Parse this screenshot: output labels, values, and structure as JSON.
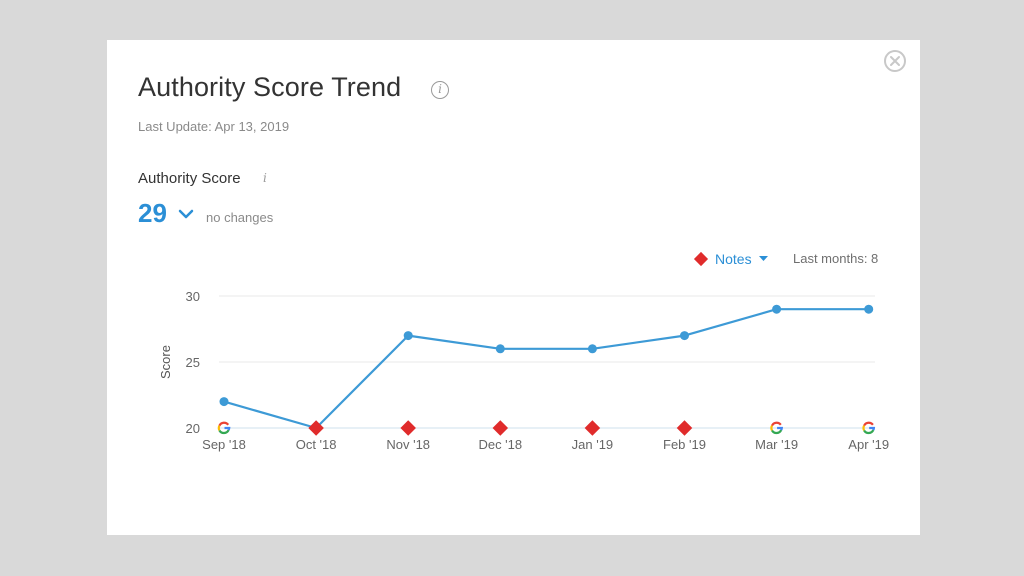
{
  "modal": {
    "title": "Authority Score Trend",
    "info_glyph": "i",
    "last_update": "Last Update: Apr 13, 2019",
    "close_icon": "close-circle-icon"
  },
  "score": {
    "label": "Authority Score",
    "info_glyph": "i",
    "value": "29",
    "change_text": "no changes"
  },
  "controls": {
    "notes_label": "Notes",
    "last_months": "Last months: 8"
  },
  "colors": {
    "accent": "#2b8fd6",
    "line": "#3d9ad6",
    "note_marker": "#e02b2b",
    "grid": "#e8e8e8"
  },
  "chart_data": {
    "type": "line",
    "title": "",
    "xlabel": "",
    "ylabel": "Score",
    "ylim": [
      20,
      30
    ],
    "yticks": [
      20,
      25,
      30
    ],
    "categories": [
      "Sep '18",
      "Oct '18",
      "Nov '18",
      "Dec '18",
      "Jan '19",
      "Feb '19",
      "Mar '19",
      "Apr '19"
    ],
    "values": [
      22,
      20,
      27,
      26,
      26,
      27,
      29,
      29
    ],
    "grid": true,
    "markers": [
      "google",
      "note",
      "note",
      "note",
      "note",
      "note",
      "google",
      "google"
    ]
  }
}
